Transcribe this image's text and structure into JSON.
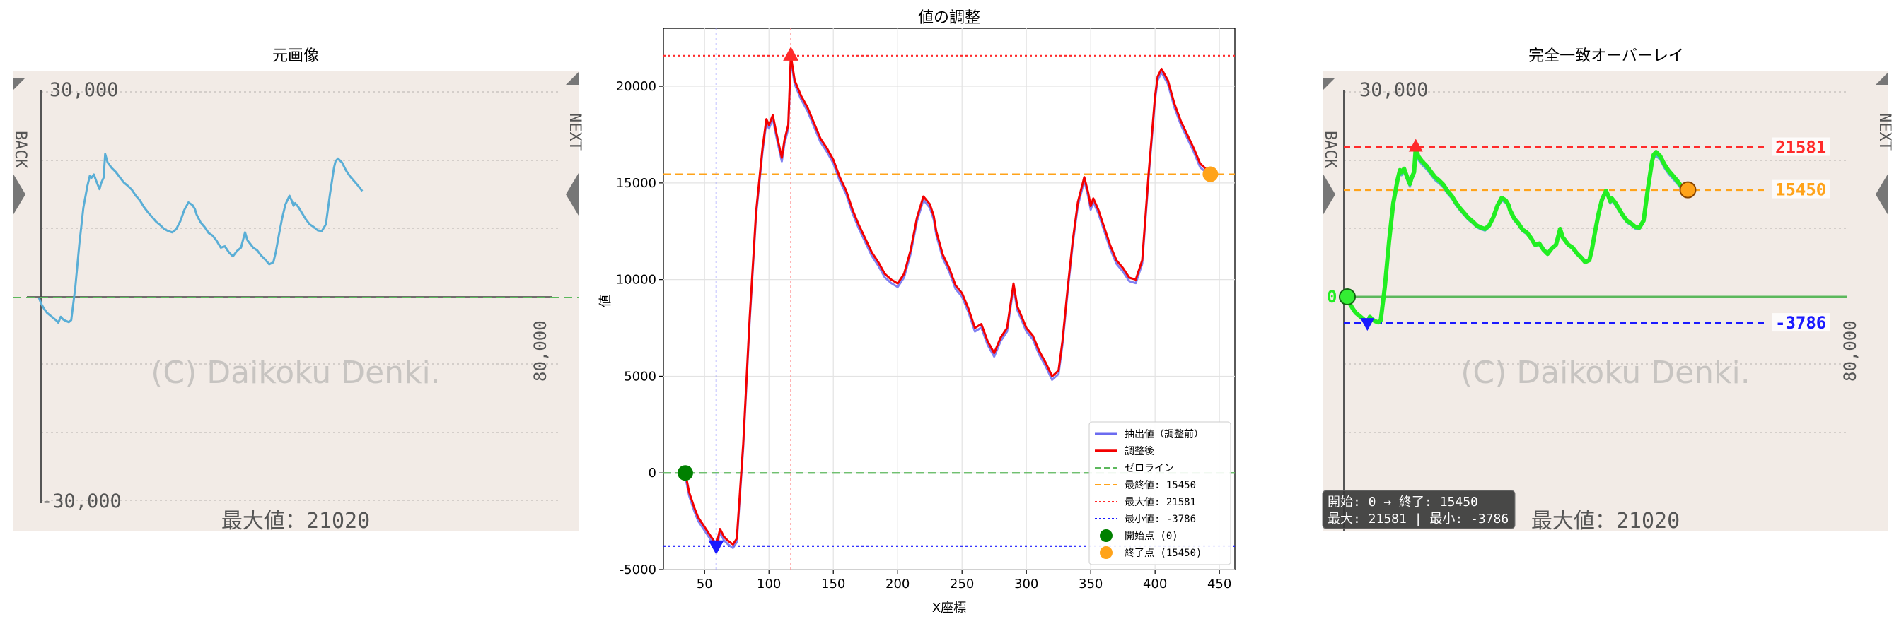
{
  "colors": {
    "panel_bg": "#f2ebe6",
    "raw": "#6b6bf0",
    "adjusted": "#f40000",
    "zero": "#5cb85c",
    "final": "#ffa31a",
    "max": "#ff2a2a",
    "min": "#1a1aff",
    "start": "#008000",
    "green_trace": "#22ee22",
    "blue_trace": "#5aaed6"
  },
  "left_panel": {
    "title": "元画像",
    "y_top_label": "30,000",
    "y_bottom_label": "-30,000",
    "right_label": "80,000",
    "watermark": "(C) Daikoku Denki.",
    "max_text": "最大値：21020",
    "side_left": "BACK",
    "side_right": "NEXT"
  },
  "right_panel": {
    "title": "完全一致オーバーレイ",
    "y_top_label": "30,000",
    "right_label": "80,000",
    "watermark": "(C) Daikoku Denki.",
    "max_text": "最大値：21020",
    "label_max": "21581",
    "label_final": "15450",
    "label_min": "-3786",
    "label_zero": "0",
    "info_line1": "開始: 0 → 終了: 15450",
    "info_line2": "最大: 21581 | 最小: -3786",
    "side_left": "BACK",
    "side_right": "NEXT"
  },
  "chart_data": {
    "type": "line",
    "title": "値の調整",
    "xlabel": "X座標",
    "ylabel": "値",
    "xlim": [
      18,
      462
    ],
    "ylim": [
      -5000,
      23000
    ],
    "x_ticks": [
      50,
      100,
      150,
      200,
      250,
      300,
      350,
      400,
      450
    ],
    "y_ticks": [
      -5000,
      0,
      5000,
      10000,
      15000,
      20000
    ],
    "grid": true,
    "legend_position": "lower-right",
    "legend": [
      "抽出値（調整前）",
      "調整後",
      "ゼロライン",
      "最終値: 15450",
      "最大値: 21581",
      "最小値: -3786",
      "開始点 (0)",
      "終了点 (15450)"
    ],
    "reference_lines": {
      "zero": 0,
      "final": 15450,
      "max": 21581,
      "min": -3786,
      "max_x": 117,
      "min_x": 59
    },
    "start_point": [
      35,
      0
    ],
    "end_point": [
      443,
      15450
    ],
    "max_point": [
      117,
      21581
    ],
    "min_point": [
      59,
      -3786
    ],
    "series": [
      {
        "name": "調整後",
        "x": [
          35,
          38,
          42,
          45,
          50,
          53,
          57,
          59,
          62,
          65,
          68,
          72,
          75,
          80,
          85,
          90,
          95,
          98,
          100,
          103,
          106,
          110,
          112,
          115,
          117,
          120,
          125,
          130,
          135,
          140,
          145,
          150,
          155,
          160,
          165,
          170,
          175,
          180,
          185,
          190,
          195,
          200,
          205,
          210,
          215,
          220,
          225,
          228,
          230,
          235,
          240,
          245,
          250,
          255,
          260,
          265,
          270,
          275,
          280,
          285,
          290,
          293,
          295,
          300,
          305,
          310,
          315,
          320,
          325,
          328,
          332,
          336,
          340,
          345,
          348,
          350,
          352,
          356,
          360,
          365,
          370,
          375,
          380,
          385,
          390,
          395,
          400,
          402,
          405,
          410,
          415,
          420,
          425,
          430,
          435,
          440,
          443
        ],
        "values": [
          0,
          -1000,
          -1800,
          -2300,
          -2800,
          -3100,
          -3500,
          -3786,
          -2900,
          -3300,
          -3500,
          -3700,
          -3400,
          1500,
          8000,
          13500,
          16800,
          18300,
          18000,
          18500,
          17500,
          16300,
          17200,
          18000,
          21581,
          20300,
          19500,
          18900,
          18100,
          17300,
          16800,
          16200,
          15300,
          14600,
          13600,
          12800,
          12100,
          11400,
          10900,
          10300,
          10000,
          9800,
          10300,
          11500,
          13200,
          14300,
          13900,
          13300,
          12500,
          11300,
          10600,
          9700,
          9300,
          8500,
          7500,
          7700,
          6800,
          6200,
          7000,
          7500,
          9800,
          8600,
          8300,
          7500,
          7100,
          6300,
          5700,
          5000,
          5300,
          6800,
          9500,
          12000,
          14000,
          15300,
          14500,
          13800,
          14200,
          13600,
          12800,
          11800,
          11000,
          10600,
          10100,
          10000,
          11000,
          15500,
          19500,
          20500,
          20900,
          20300,
          19100,
          18200,
          17500,
          16800,
          16000,
          15700,
          15450
        ]
      }
    ]
  }
}
